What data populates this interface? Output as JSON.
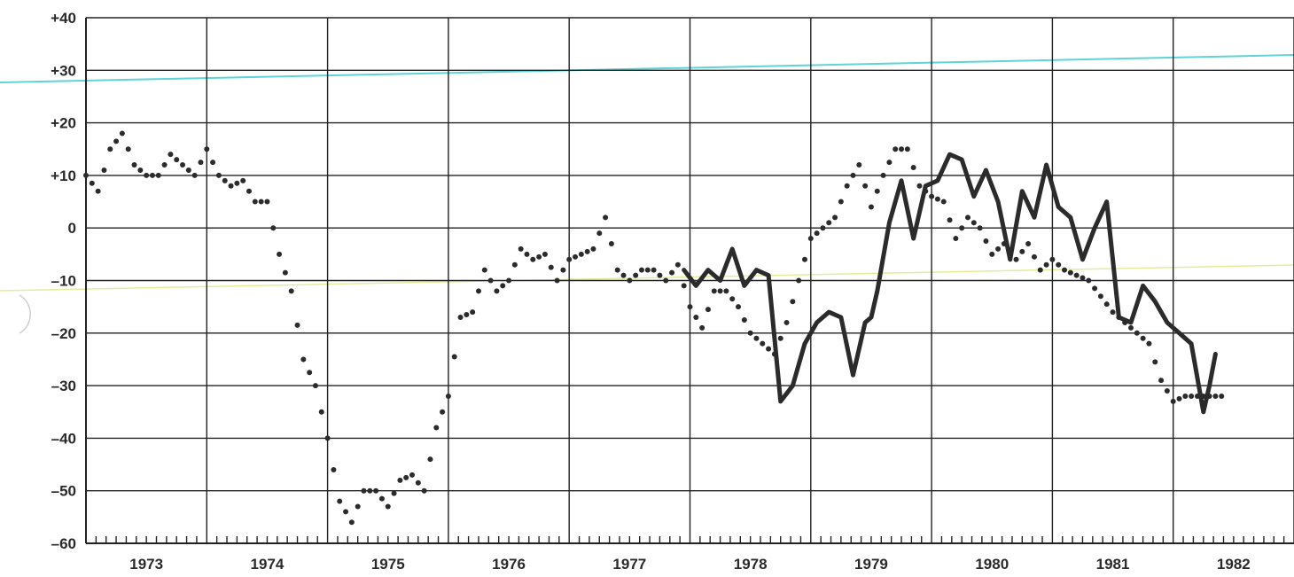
{
  "chart_data": {
    "type": "line",
    "title": "",
    "xlabel": "",
    "ylabel": "",
    "ylim": [
      -60,
      40
    ],
    "y_ticks": [
      40,
      30,
      20,
      10,
      0,
      -10,
      -20,
      -30,
      -40,
      -50,
      -60
    ],
    "y_tick_labels": [
      "+40",
      "+30",
      "+20",
      "+10",
      "0",
      "–10",
      "–20",
      "–30",
      "–40",
      "–50",
      "–60"
    ],
    "x_range": [
      1973,
      1983
    ],
    "x_tick_labels": [
      "1973",
      "1974",
      "1975",
      "1976",
      "1977",
      "1978",
      "1979",
      "1980",
      "1981",
      "1982"
    ],
    "grid": true,
    "series": [
      {
        "style": "dotted",
        "color": "#2b2b2b",
        "x": [
          1973.0,
          1973.1,
          1973.2,
          1973.3,
          1973.4,
          1973.5,
          1973.6,
          1973.7,
          1973.8,
          1973.9,
          1974.0,
          1974.1,
          1974.2,
          1974.3,
          1974.4,
          1974.5,
          1974.6,
          1974.7,
          1974.8,
          1974.9,
          1975.0,
          1975.1,
          1975.2,
          1975.3,
          1975.4,
          1975.5,
          1975.6,
          1975.7,
          1975.8,
          1975.9,
          1976.0,
          1976.1,
          1976.2,
          1976.3,
          1976.4,
          1976.5,
          1976.6,
          1976.7,
          1976.8,
          1976.9,
          1977.0,
          1977.1,
          1977.2,
          1977.3,
          1977.4,
          1977.5,
          1977.6,
          1977.7,
          1977.8,
          1977.9,
          1978.0,
          1978.1,
          1978.2,
          1978.3,
          1978.4,
          1978.5,
          1978.6,
          1978.7,
          1978.8,
          1978.9,
          1979.0,
          1979.1,
          1979.2,
          1979.3,
          1979.4,
          1979.5,
          1979.6,
          1979.7,
          1979.8,
          1979.9,
          1980.0,
          1980.1,
          1980.2,
          1980.3,
          1980.4,
          1980.5,
          1980.6,
          1980.7,
          1980.8,
          1980.9,
          1981.0,
          1981.1,
          1981.2,
          1981.3,
          1981.4,
          1981.5,
          1981.6,
          1981.7,
          1981.8,
          1981.9,
          1982.0,
          1982.1,
          1982.2,
          1982.3,
          1982.4
        ],
        "y": [
          10,
          7,
          15,
          18,
          12,
          10,
          10,
          14,
          12,
          10,
          15,
          10,
          8,
          9,
          5,
          5,
          -5,
          -12,
          -25,
          -30,
          -40,
          -52,
          -56,
          -50,
          -50,
          -53,
          -48,
          -47,
          -50,
          -38,
          -32,
          -17,
          -16,
          -8,
          -12,
          -10,
          -4,
          -6,
          -5,
          -10,
          -6,
          -5,
          -4,
          2,
          -8,
          -10,
          -8,
          -8,
          -10,
          -7,
          -15,
          -19,
          -12,
          -12,
          -15,
          -20,
          -22,
          -24,
          -18,
          -10,
          -2,
          0,
          2,
          8,
          12,
          4,
          10,
          15,
          15,
          8,
          6,
          5,
          -2,
          2,
          0,
          -5,
          -3,
          -6,
          -3,
          -8,
          -6,
          -8,
          -9,
          -10,
          -13,
          -16,
          -18,
          -20,
          -22,
          -29,
          -33,
          -32,
          -32,
          -32,
          -32
        ]
      },
      {
        "style": "solid",
        "color": "#2b2b2b",
        "x": [
          1977.95,
          1978.05,
          1978.15,
          1978.25,
          1978.35,
          1978.45,
          1978.55,
          1978.65,
          1978.75,
          1978.85,
          1978.95,
          1979.05,
          1979.15,
          1979.25,
          1979.35,
          1979.45,
          1979.5,
          1979.55,
          1979.65,
          1979.75,
          1979.85,
          1979.95,
          1980.05,
          1980.15,
          1980.25,
          1980.35,
          1980.45,
          1980.55,
          1980.65,
          1980.75,
          1980.85,
          1980.95,
          1981.05,
          1981.15,
          1981.25,
          1981.35,
          1981.45,
          1981.55,
          1981.65,
          1981.75,
          1981.85,
          1981.95,
          1982.05,
          1982.15,
          1982.25,
          1982.3,
          1982.35
        ],
        "y": [
          -8,
          -11,
          -8,
          -10,
          -4,
          -11,
          -8,
          -9,
          -33,
          -30,
          -22,
          -18,
          -16,
          -17,
          -28,
          -18,
          -17,
          -12,
          1,
          9,
          -2,
          8,
          9,
          14,
          13,
          6,
          11,
          5,
          -6,
          7,
          2,
          12,
          4,
          2,
          -6,
          0,
          5,
          -17,
          -18,
          -11,
          -14,
          -18,
          -20,
          -22,
          -35,
          -30,
          -24
        ]
      }
    ]
  },
  "decor": {
    "cyan_line_color": "#5fd3d6",
    "yellow_line_color": "#e4ec9a"
  }
}
